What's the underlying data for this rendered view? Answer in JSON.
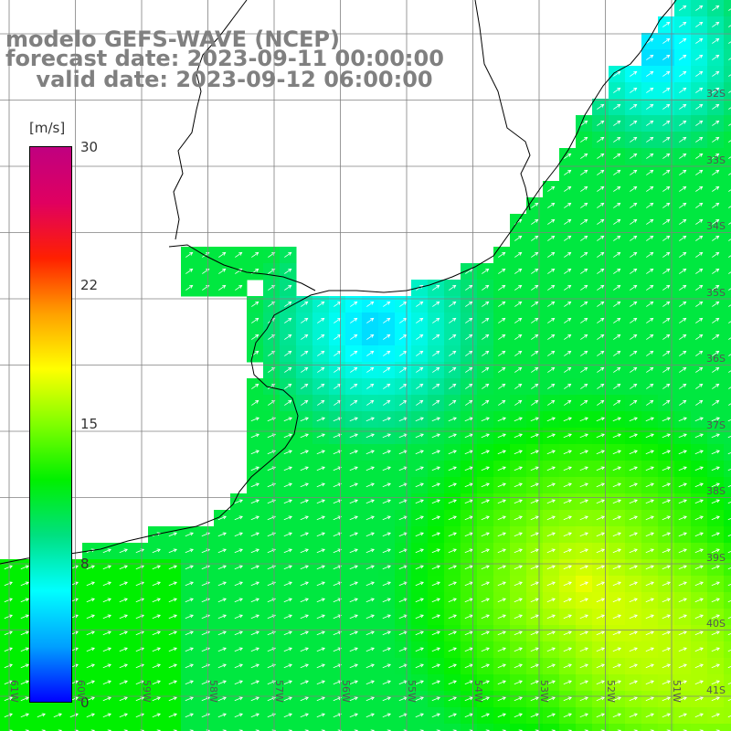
{
  "title": {
    "line1": "modelo GEFS-WAVE (NCEP)",
    "line2": "forecast date: 2023-09-11 00:00:00",
    "line3": "    valid date: 2023-09-12 06:00:00"
  },
  "colorbar": {
    "unit": "[m/s]",
    "ticks": [
      "30",
      "22",
      "15",
      "8",
      "0"
    ],
    "tick_values": [
      30,
      22,
      15,
      8,
      0
    ],
    "colors": [
      "#0000ff",
      "#00a0ff",
      "#00ffff",
      "#00e080",
      "#00f000",
      "#80ff00",
      "#ffff00",
      "#ffa000",
      "#ff2000",
      "#e00060",
      "#c00080"
    ]
  },
  "axes": {
    "lat_labels": [
      "32S",
      "33S",
      "34S",
      "35S",
      "36S",
      "37S",
      "38S",
      "39S",
      "40S",
      "41S"
    ],
    "lon_labels": [
      "61W",
      "60W",
      "59W",
      "58W",
      "57W",
      "56W",
      "55W",
      "54W",
      "53W",
      "52W",
      "51W"
    ]
  },
  "field": {
    "variable": "wind speed",
    "units": "m/s",
    "arrow_color": "#ffffff",
    "coastline_color": "#000000",
    "grid_color": "#808080"
  }
}
